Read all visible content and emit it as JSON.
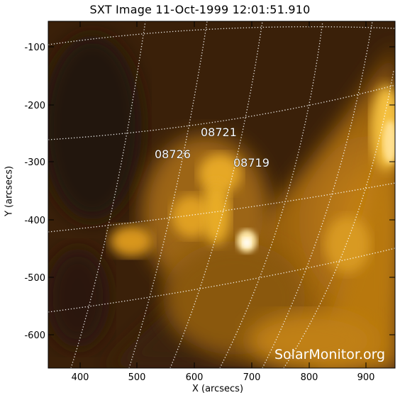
{
  "title": "SXT Image 11-Oct-1999 12:01:51.910",
  "axes": {
    "xlabel": "X (arcsecs)",
    "ylabel": "Y (arcsecs)",
    "x_ticks": [
      "400",
      "500",
      "600",
      "700",
      "800",
      "900"
    ],
    "y_ticks": [
      "-100",
      "-200",
      "-300",
      "-400",
      "-500",
      "-600"
    ]
  },
  "regions": [
    {
      "label": "08721"
    },
    {
      "label": "08726"
    },
    {
      "label": "08719"
    }
  ],
  "watermark": "SolarMonitor.org",
  "colors": {
    "dark": "#2a1606",
    "mid": "#8a5a12",
    "bright": "#f0b020",
    "hot": "#ffffff",
    "grid": "#ffffff"
  }
}
